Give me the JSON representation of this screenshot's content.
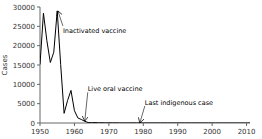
{
  "chart_data": {
    "type": "line",
    "ylabel": "Cases",
    "x": [
      1950,
      1951,
      1952,
      1953,
      1954,
      1955,
      1956,
      1957,
      1958,
      1959,
      1960,
      1961,
      1962,
      1963,
      1964,
      1965,
      1966,
      1967,
      1968,
      1969,
      1970,
      1971,
      1972,
      1973,
      1974,
      1975,
      1976,
      1977,
      1978,
      1979,
      1980,
      1981,
      1982,
      1983,
      1984,
      1985,
      1986,
      1987,
      1988,
      1989,
      1990,
      1991,
      1992,
      1993,
      1994,
      1995,
      1996,
      1997,
      1998,
      1999,
      2000,
      2001,
      2002,
      2003,
      2004,
      2005,
      2006,
      2007,
      2008,
      2009,
      2010,
      2011
    ],
    "values": [
      15140,
      28386,
      21269,
      15648,
      18308,
      28985,
      15140,
      2499,
      5787,
      8425,
      3190,
      1312,
      910,
      449,
      122,
      61,
      106,
      41,
      53,
      20,
      33,
      22,
      31,
      8,
      7,
      8,
      14,
      18,
      8,
      16,
      9,
      6,
      8,
      15,
      8,
      7,
      9,
      5,
      8,
      9,
      7,
      9,
      6,
      4,
      8,
      8,
      5,
      4,
      6,
      5,
      1,
      1,
      1,
      0,
      0,
      0,
      0,
      0,
      0,
      0,
      0,
      0
    ],
    "color": "#000000",
    "xlim": [
      1950,
      2011
    ],
    "ylim": [
      0,
      30000
    ],
    "xticks": [
      1950,
      1960,
      1970,
      1980,
      1990,
      2000,
      2010
    ],
    "yticks": [
      0,
      5000,
      10000,
      15000,
      20000,
      25000,
      30000
    ],
    "grid": false,
    "annotations": [
      {
        "text": "Inactivated vaccine",
        "x": 1955.2,
        "y": 28985
      },
      {
        "text": "Live oral vaccine",
        "x": 1963,
        "y": 449
      },
      {
        "text": "Last indigenous case",
        "x": 1979,
        "y": 16
      }
    ]
  }
}
